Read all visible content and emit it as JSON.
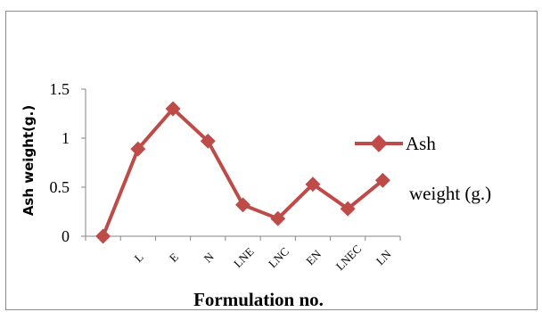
{
  "chart_data": {
    "type": "line",
    "categories": [
      "",
      "L",
      "E",
      "N",
      "LNE",
      "LNC",
      "EN",
      "LNEC",
      "LN"
    ],
    "series": [
      {
        "name": "Ash weight (g.)",
        "values": [
          0,
          0.89,
          1.3,
          0.97,
          0.32,
          0.18,
          0.53,
          0.28,
          0.57
        ]
      }
    ],
    "title": "",
    "xlabel": "Formulation no.",
    "ylabel": "Ash weight(g.)",
    "ylim": [
      0,
      1.5
    ],
    "yticks": [
      "0",
      "0.5",
      "1",
      "1.5"
    ],
    "grid": false,
    "legend": {
      "position": "right",
      "line1": "Ash",
      "line2": "weight (g.)"
    },
    "series_color": "#be4b48"
  }
}
